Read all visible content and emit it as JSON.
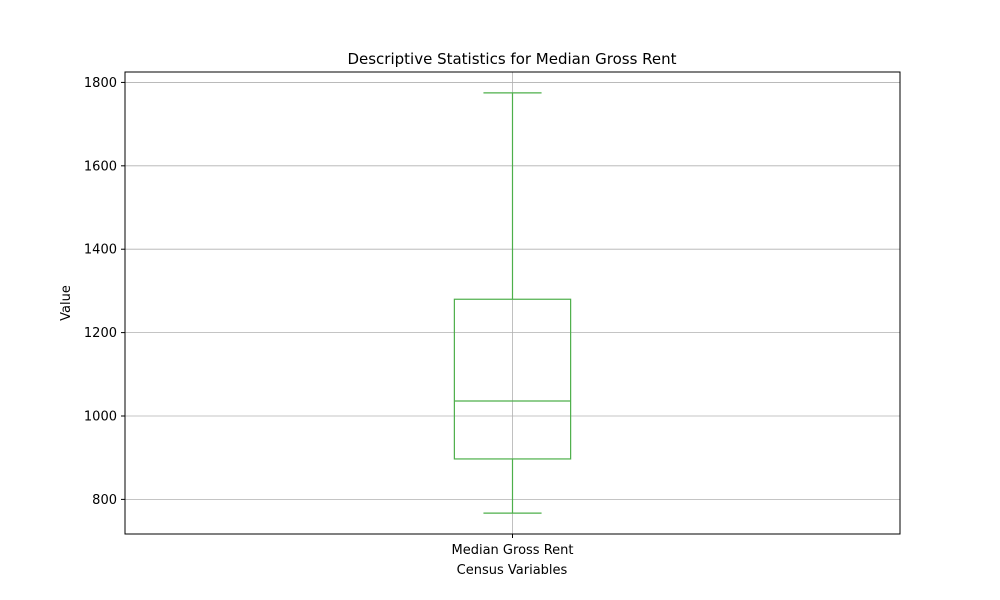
{
  "chart_data": {
    "type": "box",
    "title": "Descriptive Statistics for Median Gross Rent",
    "xlabel": "Census Variables",
    "ylabel": "Value",
    "categories": [
      "Median Gross Rent"
    ],
    "boxes": [
      {
        "category": "Median Gross Rent",
        "whisker_low": 767,
        "q1": 897,
        "median": 1036,
        "q3": 1280,
        "whisker_high": 1775
      }
    ],
    "ylim": [
      717,
      1825
    ],
    "yticks": [
      800,
      1000,
      1200,
      1400,
      1600,
      1800
    ],
    "grid": true,
    "box_color": "#4daf4a",
    "grid_color": "#b0b0b0"
  }
}
